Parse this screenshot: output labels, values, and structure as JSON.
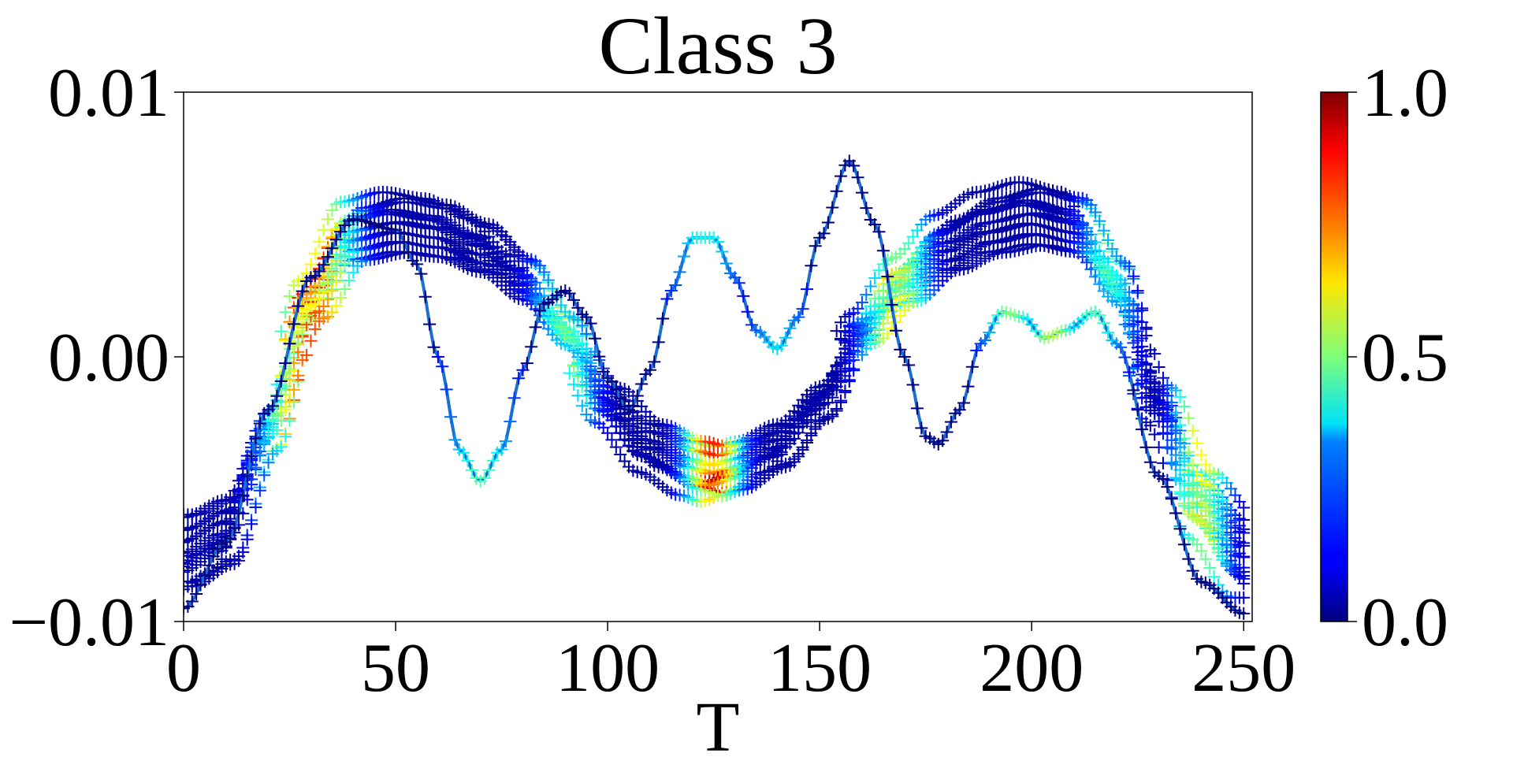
{
  "chart_data": {
    "type": "line",
    "title": "Class 3",
    "xlabel": "T",
    "ylabel": "",
    "xlim": [
      0,
      252
    ],
    "ylim": [
      -0.01,
      0.01
    ],
    "x_ticks": [
      0,
      50,
      100,
      150,
      200,
      250
    ],
    "x_tick_labels": [
      "0",
      "50",
      "100",
      "150",
      "200",
      "250"
    ],
    "y_ticks": [
      -0.01,
      0.0,
      0.01
    ],
    "y_tick_labels": [
      "−0.01",
      "0.00",
      "0.01"
    ],
    "marker": "+",
    "grid": false,
    "colormap": "jet",
    "colorbar": {
      "range": [
        0.0,
        1.0
      ],
      "ticks": [
        0.0,
        0.5,
        1.0
      ],
      "tick_labels": [
        "0.0",
        "0.5",
        "1.0"
      ]
    },
    "series_description": "Many overlapping time series (length 251) drawn with '+' markers colored by a 0-1 importance score",
    "series": [
      {
        "shape": "bundle",
        "knots": [
          [
            0,
            -0.0067
          ],
          [
            10,
            -0.006
          ],
          [
            20,
            -0.0025
          ],
          [
            30,
            0.0018
          ],
          [
            40,
            0.0042
          ],
          [
            50,
            0.0045
          ],
          [
            60,
            0.0043
          ],
          [
            70,
            0.0037
          ],
          [
            80,
            0.0026
          ],
          [
            90,
            0.0008
          ],
          [
            100,
            -0.0015
          ],
          [
            110,
            -0.003
          ],
          [
            120,
            -0.0037
          ],
          [
            125,
            -0.0039
          ],
          [
            130,
            -0.0037
          ],
          [
            140,
            -0.003
          ],
          [
            150,
            -0.0015
          ],
          [
            160,
            0.0008
          ],
          [
            170,
            0.0025
          ],
          [
            180,
            0.0038
          ],
          [
            190,
            0.0045
          ],
          [
            200,
            0.0048
          ],
          [
            210,
            0.0045
          ],
          [
            220,
            0.0025
          ],
          [
            230,
            -0.0015
          ],
          [
            240,
            -0.005
          ],
          [
            250,
            -0.0068
          ]
        ],
        "offsets": [
          -0.0003,
          0.0,
          0.0003,
          0.0006,
          0.0009,
          -0.0006,
          0.0012,
          0.0004,
          -0.0002,
          0.0007,
          0.001,
          0.0002,
          0.0005,
          -0.0004
        ],
        "amp": [
          1.0,
          1.05,
          1.1,
          1.15,
          1.2,
          0.95,
          1.25,
          1.08,
          0.98,
          1.12,
          1.22,
          1.02,
          1.18,
          0.92
        ],
        "phase": [
          0,
          1,
          -1,
          2,
          -2,
          0,
          3,
          1,
          -1,
          2,
          -2,
          0,
          1,
          -3
        ],
        "importance_peaks": [
          [
            30,
            0.9,
            8
          ],
          [
            90,
            0.55,
            6
          ],
          [
            125,
            0.95,
            5
          ],
          [
            168,
            0.7,
            6
          ],
          [
            218,
            0.5,
            5
          ],
          [
            240,
            0.7,
            5
          ]
        ]
      },
      {
        "shape": "outlier",
        "knots": [
          [
            0,
            -0.0095
          ],
          [
            10,
            -0.007
          ],
          [
            20,
            -0.002
          ],
          [
            30,
            0.003
          ],
          [
            40,
            0.0052
          ],
          [
            50,
            0.0048
          ],
          [
            55,
            0.0035
          ],
          [
            60,
            0.0
          ],
          [
            65,
            -0.0035
          ],
          [
            70,
            -0.0047
          ],
          [
            75,
            -0.0035
          ],
          [
            80,
            -0.0005
          ],
          [
            85,
            0.002
          ],
          [
            90,
            0.0025
          ],
          [
            95,
            0.0015
          ],
          [
            100,
            -0.0008
          ],
          [
            105,
            -0.002
          ],
          [
            110,
            -0.0005
          ],
          [
            115,
            0.0025
          ],
          [
            120,
            0.0045
          ],
          [
            125,
            0.0045
          ],
          [
            130,
            0.003
          ],
          [
            135,
            0.001
          ],
          [
            140,
            0.0003
          ],
          [
            145,
            0.0015
          ],
          [
            150,
            0.0045
          ],
          [
            157,
            0.0074
          ],
          [
            163,
            0.005
          ],
          [
            170,
            0.0
          ],
          [
            175,
            -0.003
          ],
          [
            178,
            -0.0033
          ],
          [
            183,
            -0.002
          ],
          [
            188,
            0.0005
          ],
          [
            193,
            0.0017
          ],
          [
            198,
            0.0015
          ],
          [
            203,
            0.0007
          ],
          [
            208,
            0.001
          ],
          [
            215,
            0.0017
          ],
          [
            220,
            0.0005
          ],
          [
            230,
            -0.0045
          ],
          [
            240,
            -0.0085
          ],
          [
            250,
            -0.0097
          ]
        ],
        "importance_peaks": [
          [
            70,
            0.45,
            6
          ],
          [
            123,
            0.4,
            6
          ],
          [
            140,
            0.35,
            5
          ],
          [
            195,
            0.5,
            5
          ],
          [
            205,
            0.55,
            5
          ],
          [
            215,
            0.45,
            5
          ]
        ]
      }
    ]
  }
}
